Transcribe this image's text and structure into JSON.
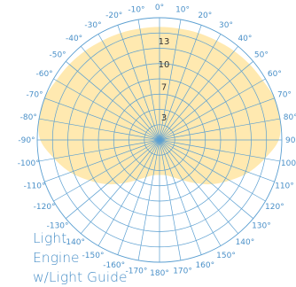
{
  "chart_data": {
    "type": "polar",
    "title": "",
    "angle_labels": [
      "0°",
      "10°",
      "20°",
      "30°",
      "40°",
      "50°",
      "60°",
      "70°",
      "80°",
      "90°",
      "100°",
      "110°",
      "120°",
      "130°",
      "140°",
      "150°",
      "160°",
      "170°",
      "180°",
      "-170°",
      "-160°",
      "-150°",
      "-140°",
      "-130°",
      "-120°",
      "-110°",
      "-100°",
      "-90°",
      "-80°",
      "-70°",
      "-60°",
      "-50°",
      "-40°",
      "-30°",
      "-20°",
      "-10°"
    ],
    "radial_labels": [
      "3",
      "7",
      "10",
      "13"
    ],
    "series": [
      {
        "angles": [
          0,
          10,
          20,
          30,
          40,
          50,
          60,
          70,
          80,
          90,
          100,
          110,
          120,
          130,
          140,
          150,
          160,
          170,
          180,
          -170,
          -160,
          -150,
          -140,
          -130,
          -120,
          -110,
          -100,
          -90,
          -80,
          -70,
          -60,
          -50,
          -40,
          -30,
          -20,
          -10
        ],
        "values": [
          14.8,
          14.8,
          14.9,
          15,
          15.2,
          15.4,
          15.6,
          16,
          16,
          15.6,
          14,
          12.4,
          10.6,
          9,
          7.4,
          6.1,
          5.2,
          4.7,
          4.6,
          4.7,
          5.2,
          6.1,
          7.4,
          9,
          10.6,
          12.4,
          14,
          15.6,
          16,
          16,
          15.6,
          15.4,
          15.2,
          15,
          14.9,
          14.8
        ]
      }
    ],
    "colors": {
      "fill": "#ffe9b0",
      "grid": "#5b9fd1",
      "angle_label": "#4a90c8",
      "radial_label": "#333333"
    }
  },
  "caption": {
    "line1": "Light",
    "line2": "Engine",
    "line3": "w/Light Guide"
  }
}
